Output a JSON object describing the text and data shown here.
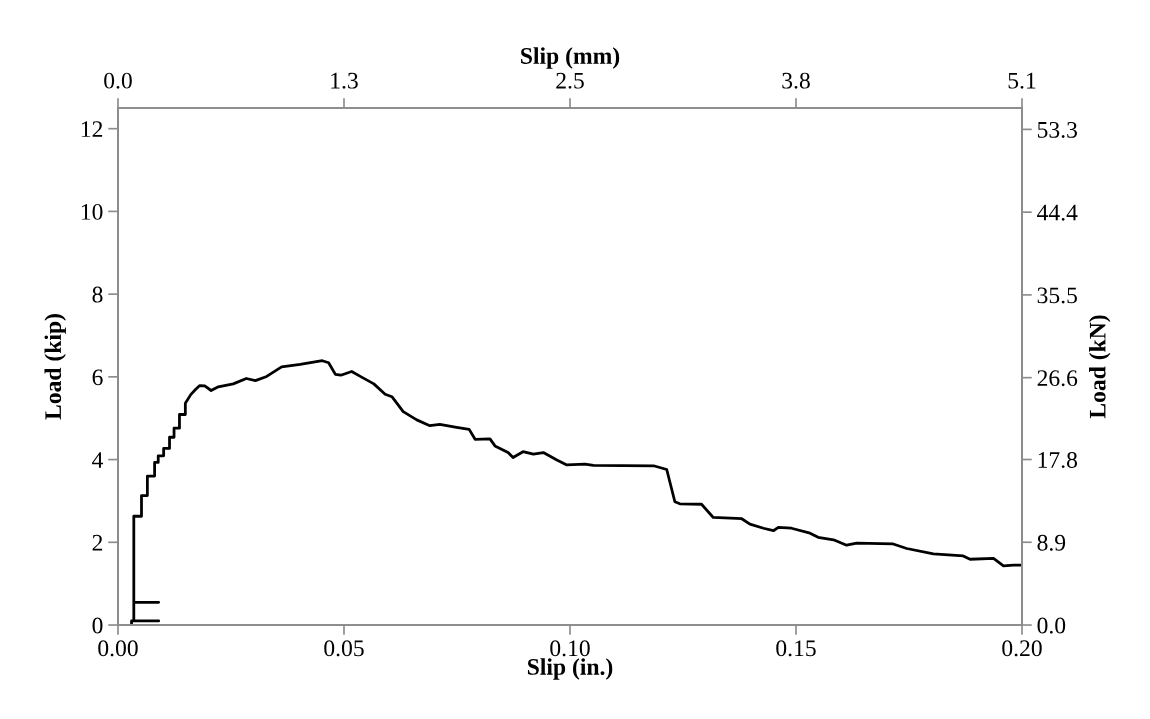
{
  "chart_data": {
    "type": "line",
    "xlabel": "Slip (in.)",
    "ylabel": "Load (kip)",
    "x2label": "Slip (mm)",
    "y2label": "Load (kN)",
    "xlim": [
      0,
      0.2
    ],
    "xticks": [
      {
        "value": 0,
        "label": "0.00"
      },
      {
        "value": 0.05,
        "label": "0.05"
      },
      {
        "value": 0.1,
        "label": "0.10"
      },
      {
        "value": 0.15,
        "label": "0.15"
      },
      {
        "value": 0.2,
        "label": "0.20"
      }
    ],
    "ylim": [
      0,
      12.5
    ],
    "yticks": [
      0,
      2,
      4,
      6,
      8,
      10,
      12
    ],
    "x2lim": [
      0,
      5.08
    ],
    "x2ticks": [
      {
        "value": 0,
        "label": "0.0"
      },
      {
        "value": 1.27,
        "label": "1.3"
      },
      {
        "value": 2.54,
        "label": "2.5"
      },
      {
        "value": 3.81,
        "label": "3.8"
      },
      {
        "value": 5.08,
        "label": "5.1"
      }
    ],
    "y2lim": [
      0,
      55.6
    ],
    "y2ticks": [
      {
        "value": 0,
        "label": "0.0"
      },
      {
        "value": 8.9,
        "label": "8.9"
      },
      {
        "value": 17.8,
        "label": "17.8"
      },
      {
        "value": 26.6,
        "label": "26.6"
      },
      {
        "value": 35.5,
        "label": "35.5"
      },
      {
        "value": 44.4,
        "label": "44.4"
      },
      {
        "value": 53.3,
        "label": "53.3"
      }
    ],
    "grid": false,
    "marker": "none",
    "line_style": "solid",
    "series": [
      {
        "color": "#000000",
        "x": [
          0.003,
          0.003,
          0.009,
          0.0035,
          0.0035,
          0.009,
          0.0035,
          0.0035,
          0.0052,
          0.0052,
          0.0065,
          0.0065,
          0.0081,
          0.0081,
          0.0089,
          0.0089,
          0.0101,
          0.0101,
          0.0114,
          0.0114,
          0.0124,
          0.0124,
          0.0136,
          0.0136,
          0.0149,
          0.0149,
          0.0161,
          0.0172,
          0.0181,
          0.0192,
          0.0206,
          0.0222,
          0.0255,
          0.0284,
          0.0304,
          0.0329,
          0.0362,
          0.0403,
          0.0452,
          0.0466,
          0.0481,
          0.0493,
          0.0517,
          0.0538,
          0.0566,
          0.0591,
          0.0606,
          0.0631,
          0.0661,
          0.069,
          0.0712,
          0.0749,
          0.0777,
          0.079,
          0.0823,
          0.0834,
          0.0863,
          0.0874,
          0.0896,
          0.0919,
          0.0941,
          0.0971,
          0.0993,
          0.1033,
          0.1052,
          0.1185,
          0.1214,
          0.1232,
          0.1243,
          0.1291,
          0.1317,
          0.138,
          0.1398,
          0.1428,
          0.145,
          0.1461,
          0.149,
          0.1531,
          0.1549,
          0.1583,
          0.1612,
          0.1634,
          0.1715,
          0.1745,
          0.1804,
          0.187,
          0.1885,
          0.1937,
          0.1959,
          0.1981,
          0.2
        ],
        "values": [
          0,
          0.1,
          0.1,
          0.1,
          0.55,
          0.55,
          0.55,
          2.63,
          2.63,
          3.13,
          3.13,
          3.6,
          3.6,
          3.93,
          3.93,
          4.09,
          4.09,
          4.27,
          4.27,
          4.54,
          4.54,
          4.76,
          4.76,
          5.09,
          5.09,
          5.36,
          5.57,
          5.7,
          5.79,
          5.78,
          5.67,
          5.76,
          5.83,
          5.96,
          5.91,
          6.01,
          6.24,
          6.3,
          6.39,
          6.34,
          6.06,
          6.04,
          6.13,
          6.0,
          5.83,
          5.58,
          5.52,
          5.16,
          4.96,
          4.82,
          4.85,
          4.78,
          4.73,
          4.49,
          4.5,
          4.33,
          4.17,
          4.05,
          4.19,
          4.13,
          4.17,
          3.99,
          3.87,
          3.89,
          3.86,
          3.85,
          3.76,
          2.98,
          2.93,
          2.92,
          2.6,
          2.57,
          2.44,
          2.34,
          2.28,
          2.36,
          2.34,
          2.22,
          2.12,
          2.06,
          1.93,
          1.98,
          1.96,
          1.85,
          1.72,
          1.67,
          1.59,
          1.61,
          1.43,
          1.45,
          1.45
        ]
      }
    ]
  }
}
